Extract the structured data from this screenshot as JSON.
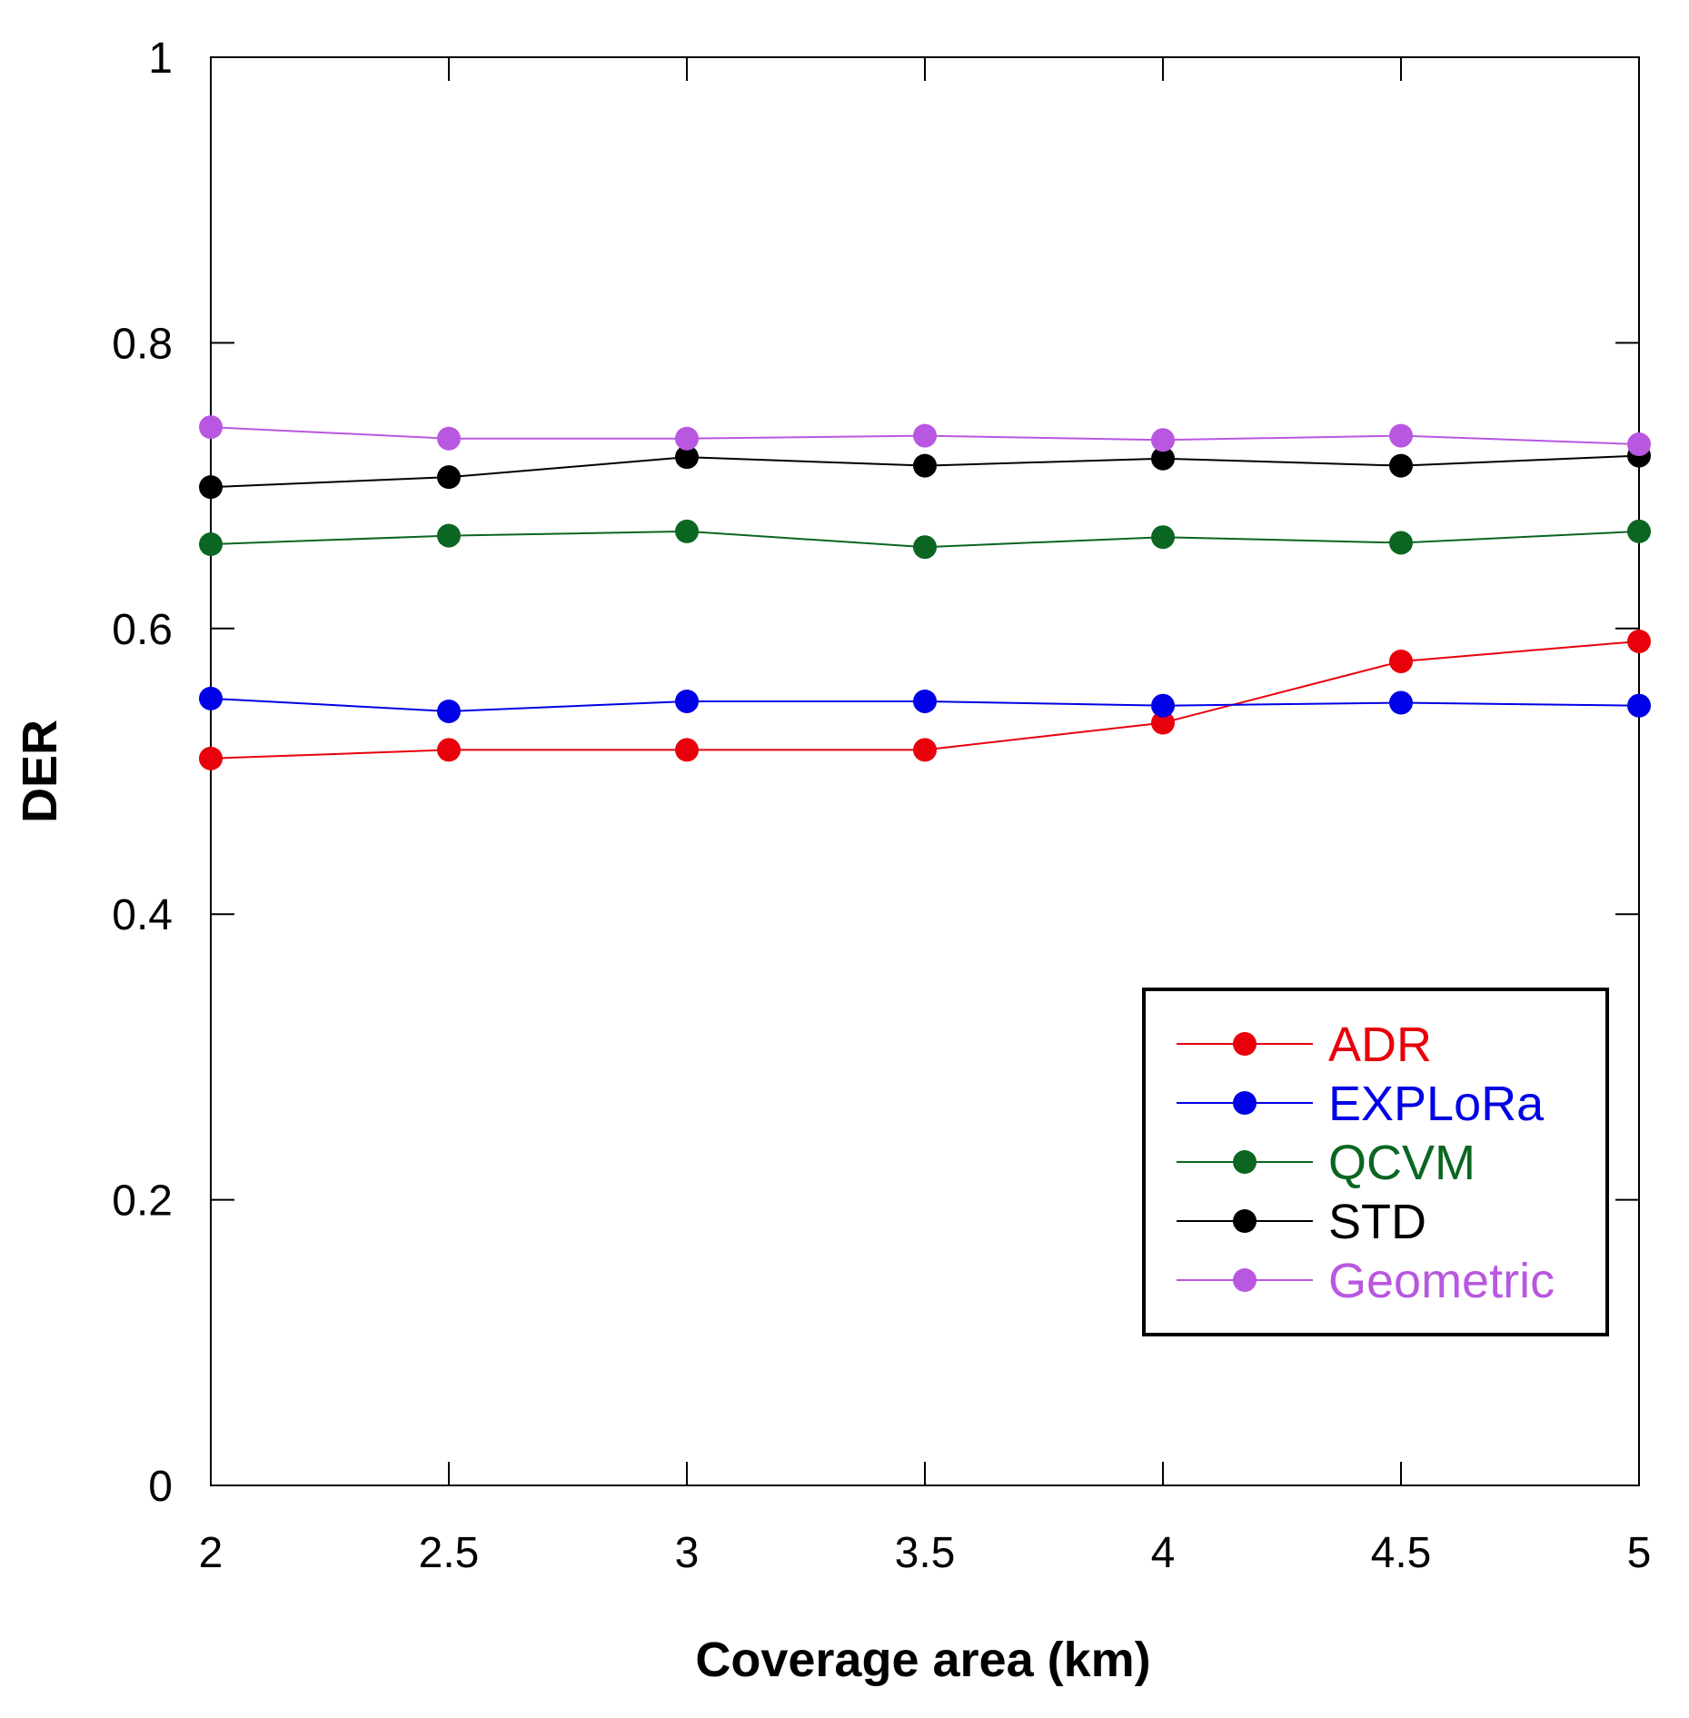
{
  "chart_data": {
    "type": "line",
    "title": "",
    "xlabel": "Coverage area (km)",
    "ylabel": "DER",
    "x": [
      2,
      2.5,
      3,
      3.5,
      4,
      4.5,
      5
    ],
    "xlim": [
      2,
      5
    ],
    "ylim": [
      0,
      1
    ],
    "xticks": [
      2,
      2.5,
      3,
      3.5,
      4,
      4.5,
      5
    ],
    "yticks": [
      0,
      0.2,
      0.4,
      0.6,
      0.8,
      1
    ],
    "xtick_labels": [
      "2",
      "2.5",
      "3",
      "3.5",
      "4",
      "4.5",
      "5"
    ],
    "ytick_labels": [
      "0",
      "0.2",
      "0.4",
      "0.6",
      "0.8",
      "1"
    ],
    "grid": false,
    "legend_position": "bottom-right",
    "series": [
      {
        "name": "ADR",
        "color": "#e8000b",
        "values": [
          0.509,
          0.515,
          0.515,
          0.515,
          0.534,
          0.577,
          0.591
        ]
      },
      {
        "name": "EXPLoRa",
        "color": "#0000e6",
        "values": [
          0.551,
          0.542,
          0.549,
          0.549,
          0.546,
          0.548,
          0.546
        ]
      },
      {
        "name": "QCVM",
        "color": "#0a6620",
        "values": [
          0.659,
          0.665,
          0.668,
          0.657,
          0.664,
          0.66,
          0.668
        ]
      },
      {
        "name": "STD",
        "color": "#000000",
        "values": [
          0.699,
          0.706,
          0.72,
          0.714,
          0.719,
          0.714,
          0.721
        ]
      },
      {
        "name": "Geometric",
        "color": "#b857e0",
        "values": [
          0.741,
          0.733,
          0.733,
          0.735,
          0.732,
          0.735,
          0.729
        ]
      }
    ]
  }
}
